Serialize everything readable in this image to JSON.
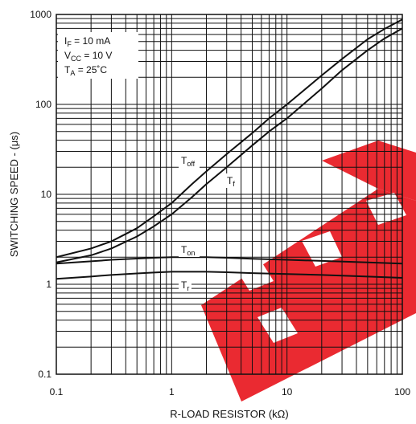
{
  "chart_data": {
    "type": "line",
    "xlabel": "R-LOAD RESISTOR (kΩ)",
    "ylabel": "SWITCHING SPEED -  (μs)",
    "x_scale": "log",
    "y_scale": "log",
    "xlim": [
      0.1,
      100
    ],
    "ylim": [
      0.1,
      1000
    ],
    "x_ticks": [
      "0.1",
      "1",
      "10",
      "100"
    ],
    "y_ticks": [
      "0.1",
      "1",
      "10",
      "100",
      "1000"
    ],
    "grid": true,
    "watermark": "red logo watermark",
    "conditions": [
      {
        "main": "I",
        "sub": "F",
        "rest": " = 10 mA"
      },
      {
        "main": "V",
        "sub": "CC",
        "rest": " = 10 V"
      },
      {
        "main": "T",
        "sub": "A",
        "rest": " = 25˚C"
      }
    ],
    "series": [
      {
        "name": "T",
        "sub": "off",
        "x": [
          0.1,
          0.2,
          0.3,
          0.5,
          0.7,
          1,
          1.5,
          2,
          3,
          5,
          7,
          10,
          20,
          30,
          50,
          70,
          100
        ],
        "y": [
          2.0,
          2.5,
          3.0,
          4.2,
          5.7,
          8.0,
          13,
          18,
          28,
          48,
          70,
          100,
          210,
          320,
          530,
          690,
          880
        ]
      },
      {
        "name": "T",
        "sub": "f",
        "x": [
          0.1,
          0.2,
          0.3,
          0.5,
          0.7,
          1,
          1.5,
          2,
          3,
          5,
          7,
          10,
          20,
          30,
          50,
          70,
          100
        ],
        "y": [
          1.75,
          2.1,
          2.5,
          3.4,
          4.4,
          6.0,
          9.3,
          13,
          20,
          35,
          50,
          70,
          150,
          240,
          400,
          540,
          700
        ]
      },
      {
        "name": "T",
        "sub": "on",
        "x": [
          0.1,
          0.2,
          0.3,
          0.5,
          0.7,
          1,
          2,
          3,
          5,
          10,
          20,
          50,
          100
        ],
        "y": [
          1.7,
          1.8,
          1.87,
          1.93,
          1.97,
          2.0,
          2.0,
          1.97,
          1.92,
          1.87,
          1.82,
          1.75,
          1.7
        ]
      },
      {
        "name": "T",
        "sub": "r",
        "x": [
          0.1,
          0.2,
          0.3,
          0.5,
          0.7,
          1,
          2,
          3,
          5,
          10,
          20,
          50,
          100
        ],
        "y": [
          1.15,
          1.22,
          1.27,
          1.32,
          1.35,
          1.38,
          1.38,
          1.36,
          1.33,
          1.3,
          1.27,
          1.22,
          1.18
        ]
      }
    ]
  }
}
